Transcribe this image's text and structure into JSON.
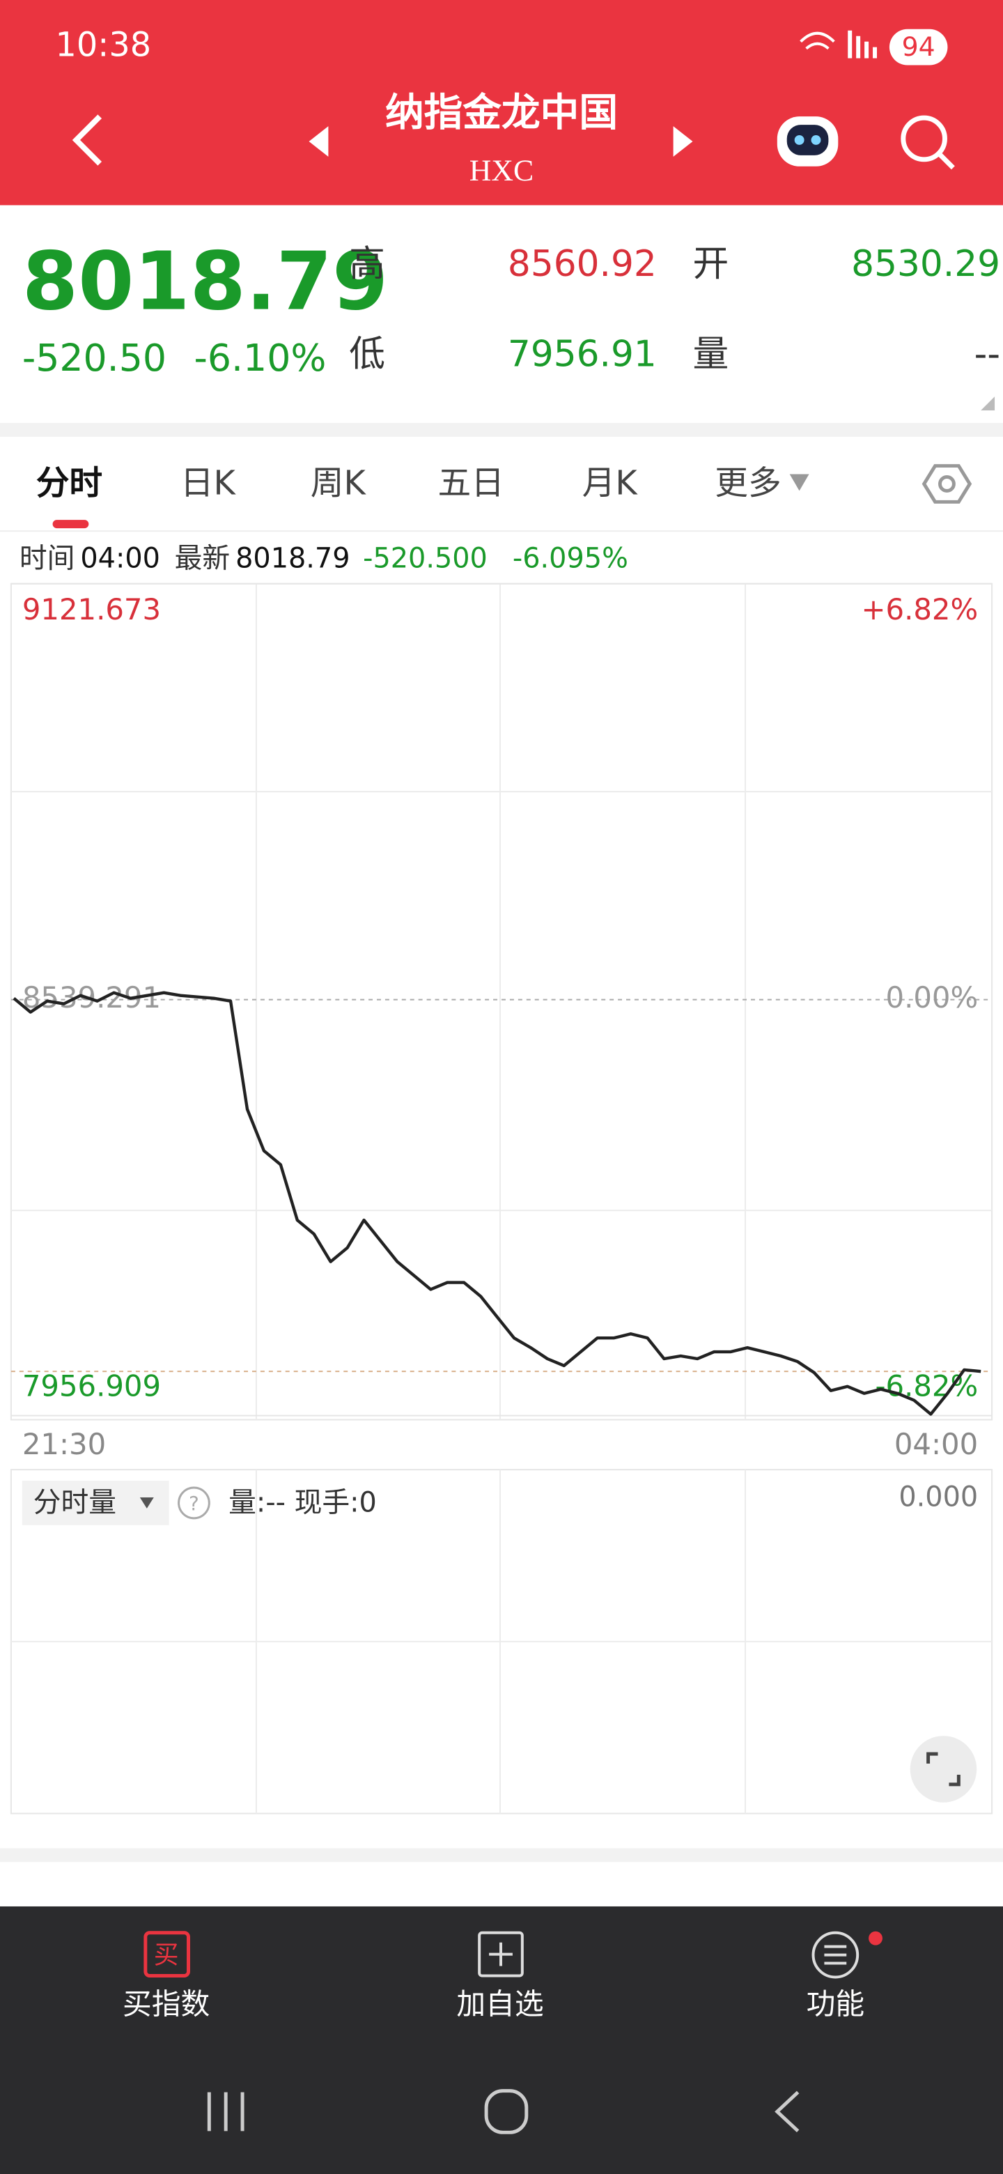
{
  "status_bar": {
    "time": "10:38",
    "battery": "94"
  },
  "header": {
    "title": "纳指金龙中国",
    "code": "HXC"
  },
  "quote": {
    "price": "8018.79",
    "change": "-520.50",
    "change_pct": "-6.10%",
    "high_label": "高",
    "high": "8560.92",
    "open_label": "开",
    "open": "8530.29",
    "low_label": "低",
    "low": "7956.91",
    "volume_label": "量",
    "volume": "--"
  },
  "tabs": [
    "分时",
    "日K",
    "周K",
    "五日",
    "月K",
    "更多"
  ],
  "info": {
    "time_label": "时间",
    "time": "04:00",
    "latest_label": "最新",
    "latest": "8018.79",
    "change": "-520.500",
    "change_pct": "-6.095%"
  },
  "chart_data": {
    "type": "line",
    "color": "#222222",
    "grid": true,
    "categories": [
      "21:30",
      null,
      null,
      null,
      null,
      null,
      null,
      null,
      null,
      null,
      null,
      null,
      null,
      null,
      null,
      null,
      null,
      null,
      null,
      null,
      null,
      null,
      null,
      null,
      null,
      null,
      null,
      null,
      null,
      null,
      null,
      null,
      null,
      null,
      null,
      null,
      null,
      null,
      null,
      null,
      null,
      null,
      null,
      null,
      null,
      null,
      null,
      null,
      null,
      null,
      null,
      null,
      null,
      null,
      null,
      null,
      null,
      null,
      "04:00"
    ],
    "values": [
      8541.2,
      8521.8,
      8537.3,
      8533.5,
      8545.1,
      8537.3,
      8549.0,
      8541.2,
      8545.1,
      8549.0,
      8545.1,
      8543.2,
      8541.2,
      8537.3,
      8385.9,
      8327.7,
      8308.3,
      8230.6,
      8211.2,
      8172.4,
      8191.8,
      8230.6,
      8201.5,
      8172.4,
      8153.0,
      8133.6,
      8143.3,
      8143.3,
      8123.9,
      8094.7,
      8065.6,
      8052.0,
      8036.5,
      8026.8,
      8046.2,
      8065.6,
      8065.6,
      8071.4,
      8065.6,
      8036.5,
      8040.4,
      8036.5,
      8046.2,
      8046.2,
      8052.0,
      8046.2,
      8040.4,
      8032.6,
      8017.1,
      7991.9,
      7997.7,
      7988.0,
      7993.8,
      7988.0,
      7978.3,
      7958.9,
      7988.0,
      8021.0,
      8018.79
    ],
    "ylim": [
      7956.909,
      9121.673
    ],
    "yticks": [
      9121.673,
      8539.291,
      7956.909
    ],
    "y_right_labels": [
      "+6.82%",
      "0.00%",
      "-6.82%"
    ]
  },
  "volume_panel": {
    "selector": "分时量",
    "help": "?",
    "info": "量:-- 现手:0",
    "max": "0.000"
  },
  "toolbar": [
    "买指数",
    "加自选",
    "功能"
  ]
}
